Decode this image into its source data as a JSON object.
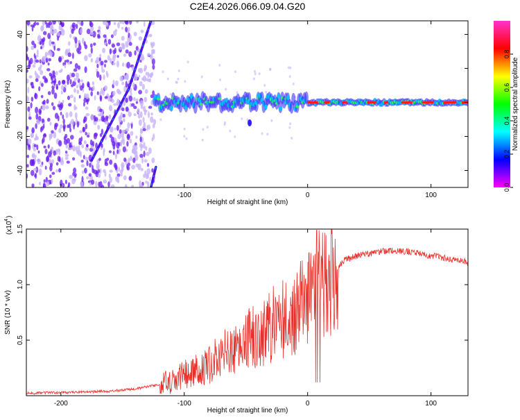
{
  "title": "C2E4.2026.066.09.04.G20",
  "colorbar": {
    "label": "Normalized spectral amplitude",
    "ticks": [
      "0.0",
      "0.2",
      "0.4",
      "0.6",
      "0.8"
    ],
    "stops": [
      "#ff00ff",
      "#0000ff",
      "#00ffff",
      "#00ff00",
      "#ffff00",
      "#ff0000",
      "#ff33cc"
    ]
  },
  "chart_data": [
    {
      "type": "heatmap",
      "name": "spectrogram",
      "xlabel": "Height of straight line (km)",
      "ylabel": "Frequency (Hz)",
      "xlim": [
        -228,
        130
      ],
      "ylim": [
        -50,
        48
      ],
      "xticks": [
        -200,
        -100,
        0,
        100
      ],
      "xtick_labels": [
        "-200",
        "-100",
        "0",
        "100"
      ],
      "yticks": [
        -40,
        -20,
        0,
        20,
        40
      ],
      "ytick_labels": [
        "-40",
        "-20",
        "0",
        "20",
        "40"
      ],
      "colors": {
        "noise": "#6a1cf0",
        "noise_light": "#c8b4f8",
        "band_blue": "#3020ff",
        "band_cyan": "#00c8ff",
        "band_green": "#30f060",
        "band_red": "#ff1a1a"
      },
      "noise_region_x": [
        -228,
        -124
      ],
      "carrier_start_x": -124,
      "carrier_frequency_hz": 0,
      "diagonal_tracks": [
        {
          "x": [
            -127,
            -145
          ],
          "y": [
            48,
            8
          ]
        },
        {
          "x": [
            -145,
            -175
          ],
          "y": [
            8,
            -34
          ]
        },
        {
          "x": [
            -123,
            -127
          ],
          "y": [
            -38,
            -50
          ]
        }
      ]
    },
    {
      "type": "line",
      "name": "snr",
      "xlabel": "Height of straight line (km)",
      "ylabel": "SNR (10 * v/v)",
      "scale_label_base": "(x10",
      "scale_label_exp": "4",
      "scale_label_close": ")",
      "xlim": [
        -228,
        130
      ],
      "ylim": [
        0,
        1.5
      ],
      "xticks": [
        -200,
        -100,
        0,
        100
      ],
      "xtick_labels": [
        "-200",
        "-100",
        "0",
        "100"
      ],
      "yticks": [
        0.5,
        1.0,
        1.5
      ],
      "ytick_labels": [
        "0.5",
        "1.0",
        "1.5"
      ],
      "color": "#e8302a",
      "series": [
        {
          "name": "SNR",
          "x": [
            -228,
            -200,
            -160,
            -140,
            -120,
            -100,
            -80,
            -60,
            -40,
            -20,
            0,
            10,
            20,
            30,
            40,
            50,
            60,
            70,
            80,
            90,
            100,
            110,
            120,
            130
          ],
          "y": [
            0.02,
            0.03,
            0.04,
            0.06,
            0.1,
            0.18,
            0.3,
            0.42,
            0.55,
            0.7,
            0.86,
            0.95,
            1.1,
            1.22,
            1.26,
            1.28,
            1.3,
            1.31,
            1.3,
            1.28,
            1.26,
            1.24,
            1.22,
            1.2
          ]
        }
      ]
    }
  ]
}
